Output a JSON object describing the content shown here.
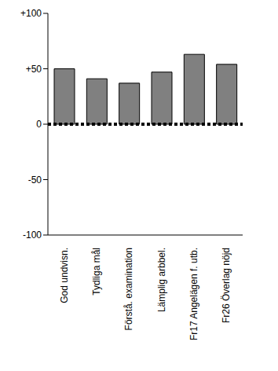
{
  "chart_data": {
    "type": "bar",
    "categories": [
      "God undvisn.",
      "Tydliga mål",
      "Förstå. examination",
      "Lämplig arbbel.",
      "Fr17 Angelägen f. utb.",
      "Fr26 Överlag nöjd"
    ],
    "values": [
      50,
      41,
      37,
      47,
      63,
      54
    ],
    "color": "#808080",
    "ylim": [
      -100,
      100
    ],
    "yticks": [
      {
        "value": 100,
        "label": "+100"
      },
      {
        "value": 50,
        "label": "+50"
      },
      0,
      -50,
      -100
    ],
    "grid": false
  }
}
